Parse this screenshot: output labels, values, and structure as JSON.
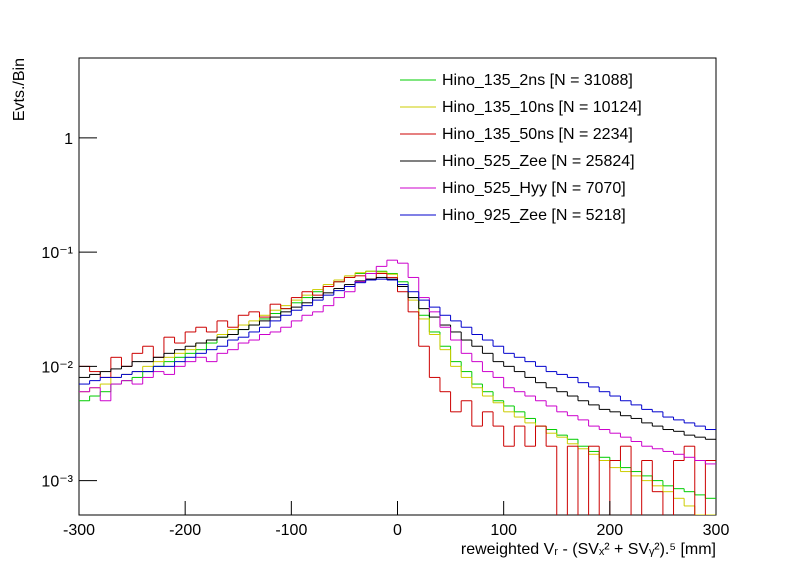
{
  "chart_data": {
    "type": "histogram",
    "xlabel": "reweighted Vᵣ - (SVₓ² + SVᵧ²).⁵ [mm]",
    "ylabel": "Evts./Bin",
    "xlim": [
      -300,
      300
    ],
    "ylim": [
      0.0005,
      5
    ],
    "log_y": true,
    "xticks": [
      -300,
      -200,
      -100,
      0,
      100,
      200,
      300
    ],
    "yticks": [
      {
        "value": 0.001,
        "label": "10⁻³"
      },
      {
        "value": 0.01,
        "label": "10⁻²"
      },
      {
        "value": 0.1,
        "label": "10⁻¹"
      },
      1
    ],
    "legend": "top-right",
    "bins": [
      -300,
      -290,
      -280,
      -270,
      -260,
      -250,
      -240,
      -230,
      -220,
      -210,
      -200,
      -190,
      -180,
      -170,
      -160,
      -150,
      -140,
      -130,
      -120,
      -110,
      -100,
      -90,
      -80,
      -70,
      -60,
      -50,
      -40,
      -30,
      -20,
      -10,
      0,
      10,
      20,
      30,
      40,
      50,
      60,
      70,
      80,
      90,
      100,
      110,
      120,
      130,
      140,
      150,
      160,
      170,
      180,
      190,
      200,
      210,
      220,
      230,
      240,
      250,
      260,
      270,
      280,
      290,
      300
    ],
    "series": [
      {
        "name": "Hino_135_2ns [N = 31088]",
        "color": "#00cc00",
        "values": [
          0.005,
          0.0055,
          0.006,
          0.007,
          0.0075,
          0.008,
          0.009,
          0.01,
          0.011,
          0.012,
          0.013,
          0.014,
          0.016,
          0.018,
          0.019,
          0.021,
          0.023,
          0.026,
          0.029,
          0.032,
          0.036,
          0.04,
          0.045,
          0.05,
          0.055,
          0.06,
          0.065,
          0.068,
          0.068,
          0.065,
          0.055,
          0.04,
          0.028,
          0.02,
          0.015,
          0.011,
          0.009,
          0.007,
          0.006,
          0.005,
          0.0045,
          0.004,
          0.0035,
          0.003,
          0.0028,
          0.0025,
          0.0023,
          0.002,
          0.0018,
          0.0016,
          0.0015,
          0.0013,
          0.0012,
          0.0011,
          0.001,
          0.0009,
          0.00085,
          0.0008,
          0.00075,
          0.0007
        ]
      },
      {
        "name": "Hino_135_10ns [N = 10124]",
        "color": "#cccc00",
        "values": [
          0.006,
          0.0065,
          0.007,
          0.008,
          0.0085,
          0.009,
          0.01,
          0.011,
          0.012,
          0.013,
          0.014,
          0.016,
          0.017,
          0.019,
          0.021,
          0.023,
          0.025,
          0.028,
          0.031,
          0.034,
          0.038,
          0.042,
          0.047,
          0.052,
          0.057,
          0.062,
          0.066,
          0.068,
          0.067,
          0.064,
          0.052,
          0.038,
          0.026,
          0.019,
          0.014,
          0.01,
          0.008,
          0.0065,
          0.0055,
          0.0048,
          0.004,
          0.0036,
          0.0032,
          0.003,
          0.0026,
          0.0024,
          0.0021,
          0.0019,
          0.0017,
          0.0015,
          0.0013,
          0.0012,
          0.0011,
          0.001,
          0.0009,
          0.0008,
          0.0007,
          0.0006,
          0.0005,
          0.0005
        ]
      },
      {
        "name": "Hino_135_50ns [N = 2234]",
        "color": "#cc0000",
        "values": [
          0.01,
          0.009,
          0.008,
          0.012,
          0.01,
          0.013,
          0.015,
          0.012,
          0.018,
          0.016,
          0.02,
          0.022,
          0.02,
          0.025,
          0.022,
          0.028,
          0.03,
          0.027,
          0.035,
          0.032,
          0.04,
          0.045,
          0.042,
          0.05,
          0.055,
          0.06,
          0.062,
          0.058,
          0.065,
          0.06,
          0.045,
          0.03,
          0.015,
          0.008,
          0.006,
          0.004,
          0.005,
          0.003,
          0.004,
          0.003,
          0.002,
          0.003,
          0.002,
          0.003,
          0.002,
          null,
          0.002,
          null,
          0.002,
          null,
          0.0015,
          0.002,
          null,
          0.0015,
          0.0008,
          null,
          0.0015,
          0.002,
          null,
          0.0015
        ]
      },
      {
        "name": "Hino_525_Zee [N = 25824]",
        "color": "#000000",
        "values": [
          0.008,
          0.0085,
          0.009,
          0.0095,
          0.01,
          0.011,
          0.011,
          0.012,
          0.013,
          0.014,
          0.015,
          0.016,
          0.017,
          0.018,
          0.019,
          0.021,
          0.023,
          0.025,
          0.027,
          0.03,
          0.033,
          0.036,
          0.04,
          0.044,
          0.048,
          0.052,
          0.056,
          0.058,
          0.06,
          0.058,
          0.05,
          0.04,
          0.032,
          0.027,
          0.023,
          0.02,
          0.017,
          0.015,
          0.013,
          0.011,
          0.01,
          0.009,
          0.008,
          0.0072,
          0.0065,
          0.006,
          0.0055,
          0.005,
          0.0046,
          0.0042,
          0.004,
          0.0037,
          0.0035,
          0.0032,
          0.003,
          0.0028,
          0.0027,
          0.0025,
          0.0024,
          0.0023
        ]
      },
      {
        "name": "Hino_525_Hyy [N = 7070]",
        "color": "#cc00cc",
        "values": [
          0.006,
          0.0065,
          0.005,
          0.007,
          0.0075,
          0.007,
          0.008,
          0.009,
          0.0085,
          0.01,
          0.011,
          0.012,
          0.011,
          0.013,
          0.014,
          0.016,
          0.017,
          0.019,
          0.02,
          0.022,
          0.025,
          0.028,
          0.03,
          0.034,
          0.04,
          0.045,
          0.055,
          0.065,
          0.075,
          0.085,
          0.08,
          0.06,
          0.04,
          0.03,
          0.022,
          0.017,
          0.013,
          0.011,
          0.009,
          0.008,
          0.0065,
          0.006,
          0.0055,
          0.005,
          0.0045,
          0.004,
          0.0037,
          0.0034,
          0.003,
          0.0028,
          0.0026,
          0.0024,
          0.0022,
          0.002,
          0.0019,
          0.0018,
          0.0017,
          0.0016,
          0.0015,
          0.0014
        ]
      },
      {
        "name": "Hino_925_Zee [N = 5218]",
        "color": "#0000cc",
        "values": [
          0.007,
          0.0075,
          0.008,
          0.008,
          0.0085,
          0.009,
          0.009,
          0.01,
          0.01,
          0.011,
          0.012,
          0.013,
          0.014,
          0.015,
          0.017,
          0.018,
          0.02,
          0.022,
          0.025,
          0.028,
          0.031,
          0.034,
          0.038,
          0.042,
          0.046,
          0.05,
          0.054,
          0.057,
          0.058,
          0.057,
          0.052,
          0.045,
          0.038,
          0.033,
          0.028,
          0.025,
          0.022,
          0.019,
          0.017,
          0.015,
          0.013,
          0.012,
          0.011,
          0.01,
          0.009,
          0.0085,
          0.008,
          0.0072,
          0.0066,
          0.006,
          0.0055,
          0.005,
          0.0046,
          0.0042,
          0.004,
          0.0036,
          0.0034,
          0.0032,
          0.003,
          0.0028
        ]
      }
    ]
  }
}
